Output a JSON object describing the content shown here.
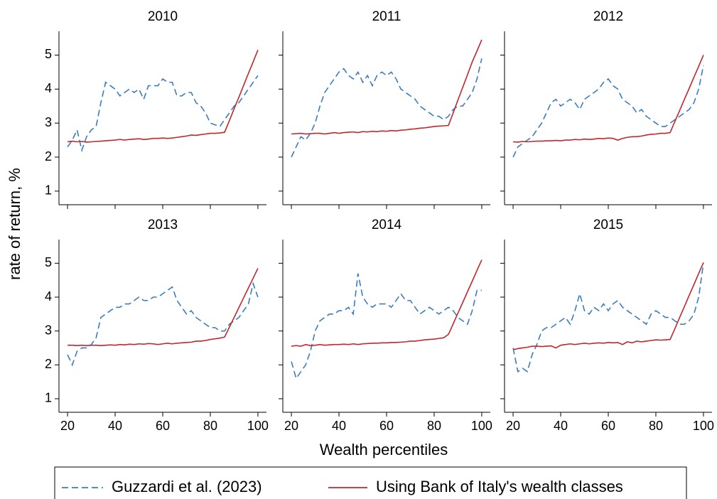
{
  "xlabel": "Wealth percentiles",
  "ylabel": "rate of return, %",
  "legend": "bottom",
  "chart_data": [
    {
      "type": "line",
      "title": "2010",
      "xlim": [
        16.4,
        103.6
      ],
      "ylim": [
        0.6,
        5.7
      ],
      "xticks": [
        20,
        40,
        60,
        80,
        100
      ],
      "yticks": [
        1,
        2,
        3,
        4,
        5
      ],
      "x": [
        20,
        22,
        24,
        26,
        28,
        30,
        32,
        34,
        36,
        38,
        40,
        42,
        44,
        46,
        48,
        50,
        52,
        54,
        56,
        58,
        60,
        62,
        64,
        66,
        68,
        70,
        72,
        74,
        76,
        78,
        80,
        82,
        84,
        86,
        88,
        90,
        92,
        94,
        96,
        98,
        100
      ],
      "series": [
        {
          "name": "Guzzardi et al. (2023)",
          "color": "#3a7dbf",
          "dashed": true,
          "values": [
            2.3,
            2.5,
            2.8,
            2.2,
            2.6,
            2.8,
            2.9,
            3.6,
            4.2,
            4.1,
            4.0,
            3.8,
            3.9,
            4.0,
            3.9,
            4.0,
            3.7,
            4.1,
            4.1,
            4.1,
            4.3,
            4.2,
            4.2,
            3.8,
            3.8,
            3.9,
            3.9,
            3.6,
            3.5,
            3.3,
            3.0,
            2.95,
            2.9,
            3.1,
            3.3,
            3.5,
            3.6,
            3.8,
            4.0,
            4.2,
            4.4
          ]
        },
        {
          "name": "Using Bank of Italy's wealth classes",
          "color": "#c1272d",
          "dashed": false,
          "values": [
            2.45,
            2.47,
            2.45,
            2.46,
            2.44,
            2.45,
            2.46,
            2.47,
            2.48,
            2.49,
            2.5,
            2.52,
            2.5,
            2.52,
            2.53,
            2.54,
            2.52,
            2.53,
            2.55,
            2.55,
            2.56,
            2.55,
            2.56,
            2.58,
            2.6,
            2.62,
            2.65,
            2.64,
            2.66,
            2.68,
            2.7,
            2.7,
            2.71,
            2.73,
            3.07,
            3.42,
            3.76,
            4.11,
            4.46,
            4.8,
            5.15
          ]
        }
      ]
    },
    {
      "type": "line",
      "title": "2011",
      "xlim": [
        16.4,
        103.6
      ],
      "ylim": [
        0.6,
        5.7
      ],
      "xticks": [
        20,
        40,
        60,
        80,
        100
      ],
      "yticks": [
        1,
        2,
        3,
        4,
        5
      ],
      "x": [
        20,
        22,
        24,
        26,
        28,
        30,
        32,
        34,
        36,
        38,
        40,
        42,
        44,
        46,
        48,
        50,
        52,
        54,
        56,
        58,
        60,
        62,
        64,
        66,
        68,
        70,
        72,
        74,
        76,
        78,
        80,
        82,
        84,
        86,
        88,
        90,
        92,
        94,
        96,
        98,
        100
      ],
      "series": [
        {
          "name": "Guzzardi et al. (2023)",
          "color": "#3a7dbf",
          "dashed": true,
          "values": [
            2.0,
            2.3,
            2.6,
            2.5,
            2.7,
            3.0,
            3.5,
            3.9,
            4.1,
            4.3,
            4.5,
            4.6,
            4.4,
            4.3,
            4.5,
            4.2,
            4.4,
            4.1,
            4.4,
            4.5,
            4.4,
            4.5,
            4.3,
            4.0,
            3.9,
            3.8,
            3.7,
            3.5,
            3.4,
            3.3,
            3.2,
            3.2,
            3.1,
            3.2,
            3.4,
            3.5,
            3.5,
            3.7,
            3.9,
            4.3,
            4.9
          ]
        },
        {
          "name": "Using Bank of Italy's wealth classes",
          "color": "#c1272d",
          "dashed": false,
          "values": [
            2.68,
            2.69,
            2.7,
            2.68,
            2.69,
            2.7,
            2.7,
            2.68,
            2.7,
            2.72,
            2.7,
            2.72,
            2.73,
            2.74,
            2.72,
            2.75,
            2.74,
            2.76,
            2.75,
            2.77,
            2.76,
            2.78,
            2.77,
            2.79,
            2.8,
            2.82,
            2.83,
            2.85,
            2.86,
            2.88,
            2.9,
            2.91,
            2.92,
            2.93,
            3.3,
            3.68,
            4.05,
            4.42,
            4.8,
            5.12,
            5.45
          ]
        }
      ]
    },
    {
      "type": "line",
      "title": "2012",
      "xlim": [
        16.4,
        103.6
      ],
      "ylim": [
        0.6,
        5.7
      ],
      "xticks": [
        20,
        40,
        60,
        80,
        100
      ],
      "yticks": [
        1,
        2,
        3,
        4,
        5
      ],
      "x": [
        20,
        22,
        24,
        26,
        28,
        30,
        32,
        34,
        36,
        38,
        40,
        42,
        44,
        46,
        48,
        50,
        52,
        54,
        56,
        58,
        60,
        62,
        64,
        66,
        68,
        70,
        72,
        74,
        76,
        78,
        80,
        82,
        84,
        86,
        88,
        90,
        92,
        94,
        96,
        98,
        100
      ],
      "series": [
        {
          "name": "Guzzardi et al. (2023)",
          "color": "#3a7dbf",
          "dashed": true,
          "values": [
            2.0,
            2.3,
            2.4,
            2.5,
            2.6,
            2.8,
            3.0,
            3.3,
            3.6,
            3.7,
            3.5,
            3.6,
            3.7,
            3.6,
            3.4,
            3.7,
            3.8,
            3.9,
            4.0,
            4.2,
            4.3,
            4.1,
            4.0,
            3.7,
            3.6,
            3.5,
            3.3,
            3.4,
            3.2,
            3.1,
            3.0,
            2.9,
            2.9,
            3.0,
            3.1,
            3.2,
            3.3,
            3.4,
            3.6,
            4.0,
            4.7
          ]
        },
        {
          "name": "Using Bank of Italy's wealth classes",
          "color": "#c1272d",
          "dashed": false,
          "values": [
            2.45,
            2.44,
            2.46,
            2.45,
            2.46,
            2.47,
            2.47,
            2.48,
            2.48,
            2.49,
            2.48,
            2.5,
            2.5,
            2.52,
            2.51,
            2.53,
            2.52,
            2.53,
            2.55,
            2.54,
            2.56,
            2.55,
            2.5,
            2.55,
            2.58,
            2.6,
            2.6,
            2.62,
            2.65,
            2.67,
            2.68,
            2.7,
            2.7,
            2.72,
            3.05,
            3.37,
            3.7,
            4.02,
            4.35,
            4.67,
            5.0
          ]
        }
      ]
    },
    {
      "type": "line",
      "title": "2013",
      "xlim": [
        16.4,
        103.6
      ],
      "ylim": [
        0.6,
        5.7
      ],
      "xticks": [
        20,
        40,
        60,
        80,
        100
      ],
      "yticks": [
        1,
        2,
        3,
        4,
        5
      ],
      "x": [
        20,
        22,
        24,
        26,
        28,
        30,
        32,
        34,
        36,
        38,
        40,
        42,
        44,
        46,
        48,
        50,
        52,
        54,
        56,
        58,
        60,
        62,
        64,
        66,
        68,
        70,
        72,
        74,
        76,
        78,
        80,
        82,
        84,
        86,
        88,
        90,
        92,
        94,
        96,
        98,
        100
      ],
      "series": [
        {
          "name": "Guzzardi et al. (2023)",
          "color": "#3a7dbf",
          "dashed": true,
          "values": [
            2.3,
            2.0,
            2.4,
            2.5,
            2.5,
            2.6,
            2.8,
            3.4,
            3.5,
            3.6,
            3.7,
            3.7,
            3.8,
            3.8,
            3.9,
            4.0,
            3.9,
            3.9,
            4.0,
            4.0,
            4.1,
            4.2,
            4.3,
            3.9,
            3.7,
            3.5,
            3.6,
            3.4,
            3.3,
            3.2,
            3.1,
            3.1,
            3.0,
            3.0,
            3.2,
            3.3,
            3.4,
            3.6,
            3.8,
            4.4,
            4.0
          ]
        },
        {
          "name": "Using Bank of Italy's wealth classes",
          "color": "#c1272d",
          "dashed": false,
          "values": [
            2.58,
            2.58,
            2.57,
            2.58,
            2.57,
            2.58,
            2.58,
            2.57,
            2.58,
            2.59,
            2.58,
            2.6,
            2.59,
            2.61,
            2.6,
            2.62,
            2.61,
            2.63,
            2.62,
            2.6,
            2.62,
            2.64,
            2.62,
            2.64,
            2.65,
            2.66,
            2.67,
            2.7,
            2.7,
            2.72,
            2.75,
            2.77,
            2.79,
            2.82,
            3.11,
            3.4,
            3.69,
            3.98,
            4.27,
            4.56,
            4.85
          ]
        }
      ]
    },
    {
      "type": "line",
      "title": "2014",
      "xlim": [
        16.4,
        103.6
      ],
      "ylim": [
        0.6,
        5.7
      ],
      "xticks": [
        20,
        40,
        60,
        80,
        100
      ],
      "yticks": [
        1,
        2,
        3,
        4,
        5
      ],
      "x": [
        20,
        22,
        24,
        26,
        28,
        30,
        32,
        34,
        36,
        38,
        40,
        42,
        44,
        46,
        48,
        50,
        52,
        54,
        56,
        58,
        60,
        62,
        64,
        66,
        68,
        70,
        72,
        74,
        76,
        78,
        80,
        82,
        84,
        86,
        88,
        90,
        92,
        94,
        96,
        98,
        100
      ],
      "series": [
        {
          "name": "Guzzardi et al. (2023)",
          "color": "#3a7dbf",
          "dashed": true,
          "values": [
            2.1,
            1.6,
            1.8,
            2.0,
            2.4,
            3.0,
            3.3,
            3.4,
            3.5,
            3.5,
            3.6,
            3.6,
            3.7,
            3.5,
            4.7,
            4.0,
            3.8,
            3.7,
            3.8,
            3.8,
            3.8,
            3.7,
            3.9,
            4.1,
            3.9,
            3.9,
            3.7,
            3.5,
            3.6,
            3.7,
            3.6,
            3.5,
            3.6,
            3.7,
            3.6,
            3.4,
            3.3,
            3.2,
            3.6,
            4.2,
            4.2
          ]
        },
        {
          "name": "Using Bank of Italy's wealth classes",
          "color": "#c1272d",
          "dashed": false,
          "values": [
            2.55,
            2.57,
            2.55,
            2.6,
            2.57,
            2.58,
            2.6,
            2.58,
            2.59,
            2.6,
            2.6,
            2.61,
            2.6,
            2.62,
            2.6,
            2.62,
            2.63,
            2.64,
            2.64,
            2.65,
            2.65,
            2.66,
            2.66,
            2.67,
            2.68,
            2.7,
            2.7,
            2.72,
            2.74,
            2.75,
            2.76,
            2.78,
            2.8,
            2.9,
            3.21,
            3.53,
            3.84,
            4.16,
            4.47,
            4.79,
            5.1
          ]
        }
      ]
    },
    {
      "type": "line",
      "title": "2015",
      "xlim": [
        16.4,
        103.6
      ],
      "ylim": [
        0.6,
        5.7
      ],
      "xticks": [
        20,
        40,
        60,
        80,
        100
      ],
      "yticks": [
        1,
        2,
        3,
        4,
        5
      ],
      "x": [
        20,
        22,
        24,
        26,
        28,
        30,
        32,
        34,
        36,
        38,
        40,
        42,
        44,
        46,
        48,
        50,
        52,
        54,
        56,
        58,
        60,
        62,
        64,
        66,
        68,
        70,
        72,
        74,
        76,
        78,
        80,
        82,
        84,
        86,
        88,
        90,
        92,
        94,
        96,
        98,
        100
      ],
      "series": [
        {
          "name": "Guzzardi et al. (2023)",
          "color": "#3a7dbf",
          "dashed": true,
          "values": [
            2.5,
            1.8,
            1.9,
            1.8,
            2.3,
            2.6,
            3.0,
            3.1,
            3.1,
            3.2,
            3.3,
            3.4,
            3.2,
            3.6,
            4.1,
            3.6,
            3.5,
            3.7,
            3.6,
            3.8,
            3.6,
            3.8,
            3.9,
            3.7,
            3.6,
            3.5,
            3.4,
            3.3,
            3.2,
            3.5,
            3.6,
            3.5,
            3.4,
            3.4,
            3.3,
            3.2,
            3.2,
            3.3,
            3.5,
            4.0,
            5.0
          ]
        },
        {
          "name": "Using Bank of Italy's wealth classes",
          "color": "#c1272d",
          "dashed": false,
          "values": [
            2.45,
            2.48,
            2.5,
            2.52,
            2.55,
            2.55,
            2.54,
            2.55,
            2.56,
            2.5,
            2.58,
            2.6,
            2.62,
            2.6,
            2.62,
            2.64,
            2.62,
            2.64,
            2.65,
            2.64,
            2.66,
            2.65,
            2.66,
            2.6,
            2.68,
            2.65,
            2.7,
            2.68,
            2.7,
            2.72,
            2.74,
            2.73,
            2.74,
            2.75,
            3.07,
            3.4,
            3.72,
            4.05,
            4.37,
            4.7,
            5.02
          ]
        }
      ]
    }
  ]
}
